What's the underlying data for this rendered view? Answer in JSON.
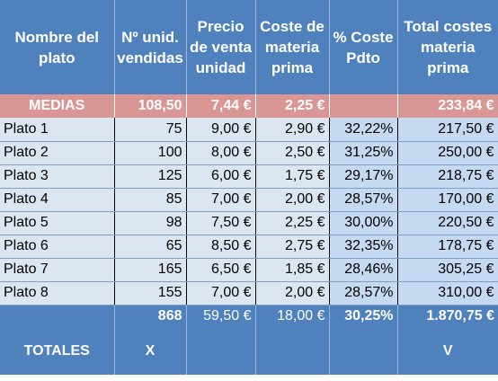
{
  "headers": [
    "Nombre del plato",
    "Nº unid. vendidas",
    "Precio de venta unidad",
    "Coste de materia prima",
    "% Coste Pdto",
    "Total costes materia prima"
  ],
  "medias": [
    "MEDIAS",
    "108,50",
    "7,44 €",
    "2,25 €",
    "",
    "233,84 €"
  ],
  "rows": [
    [
      "Plato 1",
      "75",
      "9,00 €",
      "2,90 €",
      "32,22%",
      "217,50 €"
    ],
    [
      "Plato 2",
      "100",
      "8,00 €",
      "2,50 €",
      "31,25%",
      "250,00 €"
    ],
    [
      "Plato 3",
      "125",
      "6,00 €",
      "1,75 €",
      "29,17%",
      "218,75 €"
    ],
    [
      "Plato 4",
      "85",
      "7,00 €",
      "2,00 €",
      "28,57%",
      "170,00 €"
    ],
    [
      "Plato 5",
      "98",
      "7,50 €",
      "2,25 €",
      "30,00%",
      "220,50 €"
    ],
    [
      "Plato 6",
      "65",
      "8,50 €",
      "2,75 €",
      "32,35%",
      "178,75 €"
    ],
    [
      "Plato 7",
      "165",
      "6,50 €",
      "1,85 €",
      "28,46%",
      "305,25 €"
    ],
    [
      "Plato 8",
      "155",
      "7,00 €",
      "2,00 €",
      "28,57%",
      "310,00 €"
    ]
  ],
  "sums": [
    "",
    "868",
    "59,50 €",
    "18,00 €",
    "30,25%",
    "1.870,75 €"
  ],
  "totales": [
    "TOTALES",
    "X",
    "",
    "",
    "",
    "V"
  ]
}
